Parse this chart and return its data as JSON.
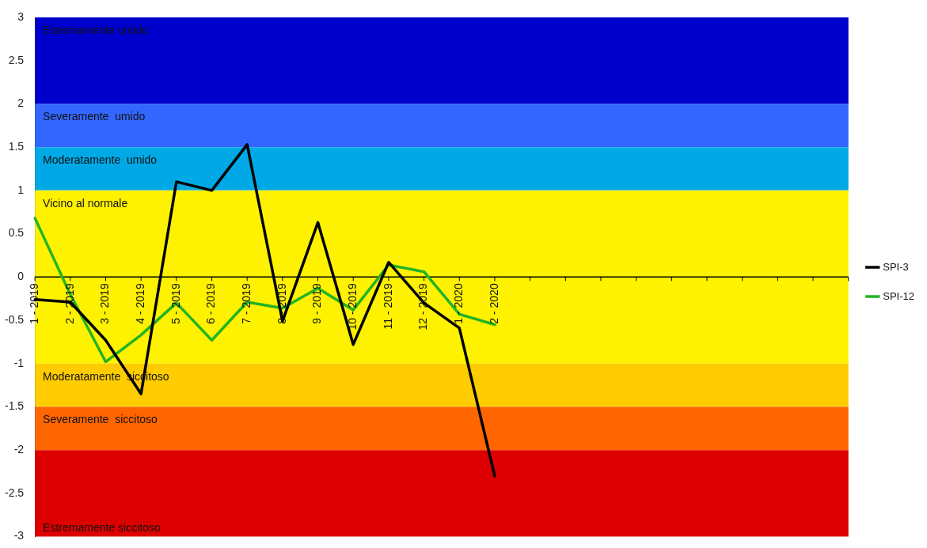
{
  "chart_data": {
    "type": "line",
    "categories": [
      "1 - 2019",
      "2 - 2019",
      "3 - 2019",
      "4 - 2019",
      "5 - 2019",
      "6 - 2019",
      "7 - 2019",
      "8 - 2019",
      "9 - 2019",
      "10 - 2019",
      "11 - 2019",
      "12 - 2019",
      "1 - 2020",
      "2 - 2020",
      null,
      null,
      null,
      null,
      null,
      null,
      null,
      null,
      null,
      null
    ],
    "series": [
      {
        "name": "SPI-3",
        "color": "#000000",
        "values": [
          -0.26,
          -0.29,
          -0.73,
          -1.35,
          1.1,
          1.0,
          1.53,
          -0.51,
          0.63,
          -0.78,
          0.17,
          -0.3,
          -0.59,
          -2.3,
          null,
          null,
          null,
          null,
          null,
          null,
          null,
          null,
          null,
          null
        ]
      },
      {
        "name": "SPI-12",
        "color": "#22b422",
        "values": [
          0.68,
          -0.2,
          -0.98,
          -0.67,
          -0.3,
          -0.73,
          -0.29,
          -0.36,
          -0.13,
          -0.38,
          0.14,
          0.06,
          -0.43,
          -0.55,
          null,
          null,
          null,
          null,
          null,
          null,
          null,
          null,
          null,
          null
        ]
      }
    ],
    "ylim": [
      -3,
      3
    ],
    "yticks": [
      -3,
      -2.5,
      -2,
      -1.5,
      -1,
      -0.5,
      0,
      0.5,
      1,
      1.5,
      2,
      2.5,
      3
    ],
    "bands": [
      {
        "axis": "y",
        "from": 2,
        "to": 3,
        "label": "Estremamente umido",
        "color": "#0000cc"
      },
      {
        "axis": "y",
        "from": 1.5,
        "to": 2,
        "label": "Severamente  umido",
        "color": "#3366ff"
      },
      {
        "axis": "y",
        "from": 1,
        "to": 1.5,
        "label": "Moderatamente  umido",
        "color": "#00a9e6"
      },
      {
        "axis": "y",
        "from": -1,
        "to": 1,
        "label": "Vicino al normale",
        "color": "#fff200"
      },
      {
        "axis": "y",
        "from": -1.5,
        "to": -1,
        "label": "Moderatamente  siccitoso",
        "color": "#ffcc00"
      },
      {
        "axis": "y",
        "from": -2,
        "to": -1.5,
        "label": "Severamente  siccitoso",
        "color": "#ff6600"
      },
      {
        "axis": "y",
        "from": -3,
        "to": -2,
        "label": "Estremamente siccitoso",
        "color": "#dd0000"
      }
    ],
    "grid": false,
    "legend": "right",
    "marker": "none",
    "line_style": "solid"
  }
}
